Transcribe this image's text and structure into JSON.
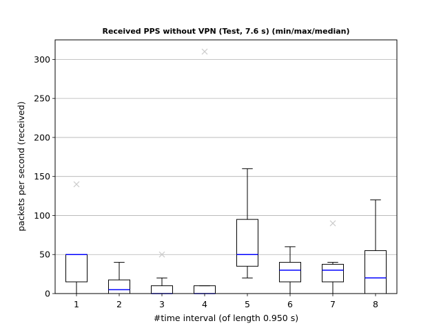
{
  "chart_data": {
    "type": "boxplot",
    "title": "Received PPS without VPN (Test, 7.6 s) (min/max/median)",
    "xlabel": "#time interval (of length 0.950 s)",
    "ylabel": "packets per second (received)",
    "ylim": [
      0,
      325
    ],
    "yticks": [
      0,
      50,
      100,
      150,
      200,
      250,
      300
    ],
    "grid": "y",
    "categories": [
      "1",
      "2",
      "3",
      "4",
      "5",
      "6",
      "7",
      "8"
    ],
    "boxes": [
      {
        "whislo": 0,
        "q1": 15,
        "med": 50,
        "q3": 50,
        "whishi": 50,
        "outliers": [
          140
        ]
      },
      {
        "whislo": 0,
        "q1": 0,
        "med": 5,
        "q3": 17.5,
        "whishi": 40,
        "outliers": []
      },
      {
        "whislo": 0,
        "q1": 0,
        "med": 0,
        "q3": 10,
        "whishi": 20,
        "outliers": [
          50
        ]
      },
      {
        "whislo": 0,
        "q1": 0,
        "med": 0,
        "q3": 10,
        "whishi": 10,
        "outliers": [
          310
        ]
      },
      {
        "whislo": 20,
        "q1": 35,
        "med": 50,
        "q3": 95,
        "whishi": 160,
        "outliers": []
      },
      {
        "whislo": 0,
        "q1": 15,
        "med": 30,
        "q3": 40,
        "whishi": 60,
        "outliers": []
      },
      {
        "whislo": 0,
        "q1": 15,
        "med": 30,
        "q3": 37.5,
        "whishi": 40,
        "outliers": [
          90
        ]
      },
      {
        "whislo": 0,
        "q1": 0,
        "med": 20,
        "q3": 55,
        "whishi": 120,
        "outliers": []
      }
    ],
    "colors": {
      "box": "#000000",
      "median": "#0000ff",
      "outlier": "#cccccc",
      "grid": "#b0b0b0"
    }
  }
}
